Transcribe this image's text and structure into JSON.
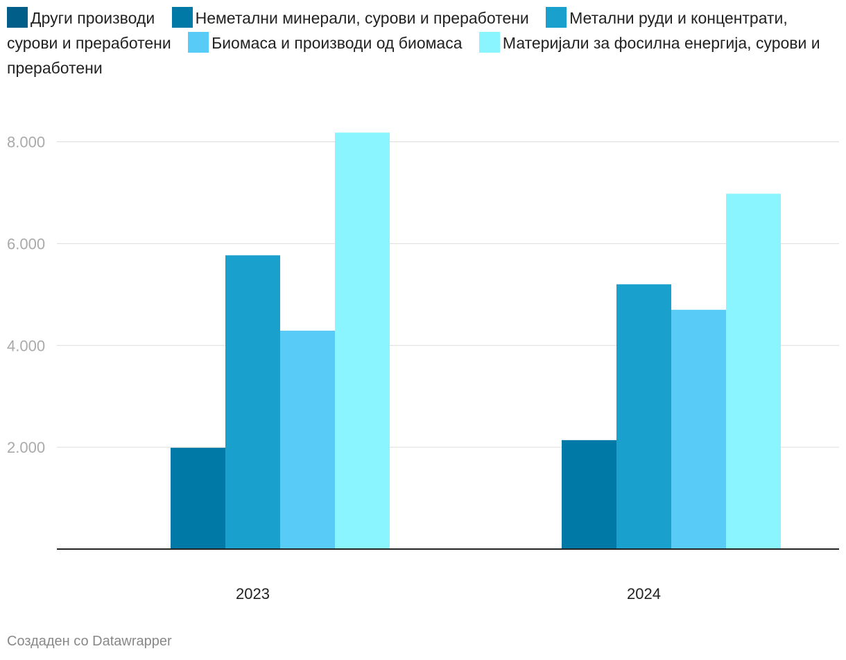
{
  "chart_data": {
    "type": "bar",
    "categories": [
      "2023",
      "2024"
    ],
    "series": [
      {
        "name": "Други производи",
        "color": "#005e88",
        "values": [
          0,
          0
        ]
      },
      {
        "name": "Неметални минерали, сурови и преработени",
        "color": "#0079a6",
        "values": [
          1990,
          2140
        ]
      },
      {
        "name": "Метални руди и концентрати, сурови и преработени",
        "color": "#19a0cd",
        "values": [
          5770,
          5200
        ]
      },
      {
        "name": "Биомаса и производи од биомаса",
        "color": "#59cbf7",
        "values": [
          4290,
          4700
        ]
      },
      {
        "name": "Материјали за фосилна енергија, сурови и преработени",
        "color": "#8af5ff",
        "values": [
          8180,
          6980
        ]
      }
    ],
    "yticks": [
      "2.000",
      "4.000",
      "6.000",
      "8.000"
    ],
    "ytick_values": [
      2000,
      4000,
      6000,
      8000
    ],
    "ylim": [
      0,
      8500
    ],
    "grid": true,
    "legend": "top"
  },
  "footer": "Создаден со Datawrapper"
}
